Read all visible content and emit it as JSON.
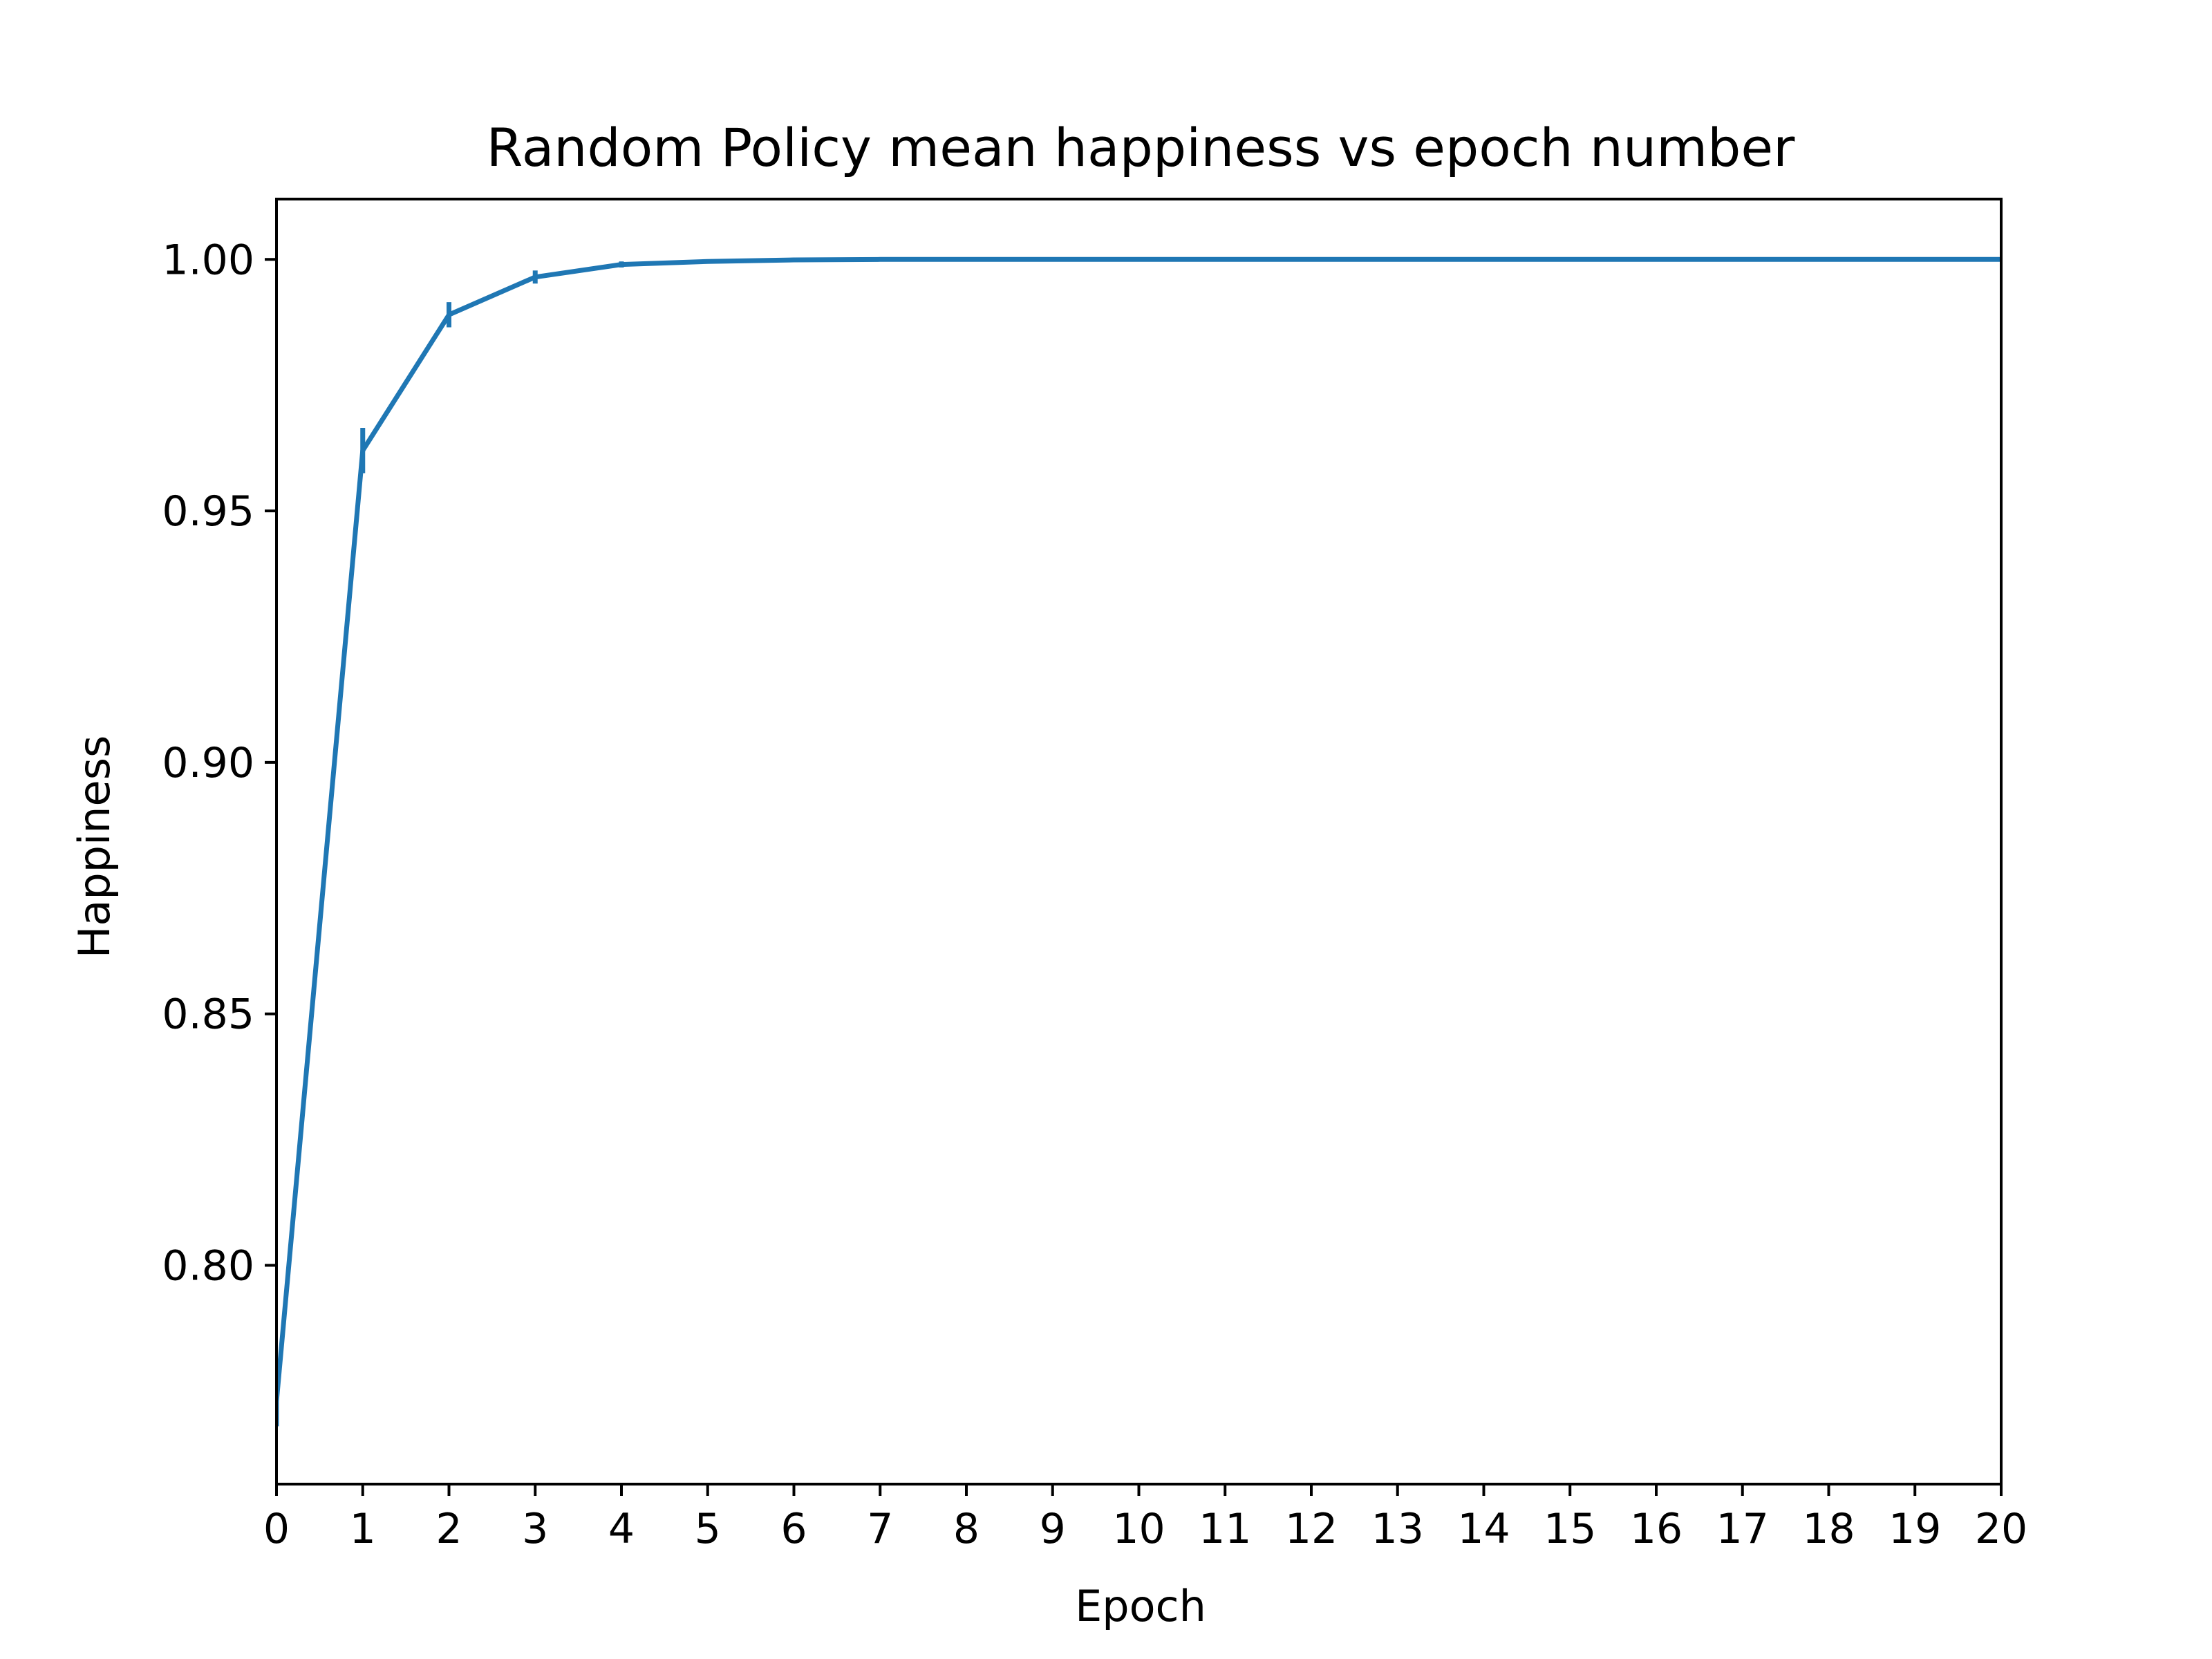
{
  "chart_data": {
    "type": "line",
    "title": "Random Policy mean happiness vs epoch number",
    "xlabel": "Epoch",
    "ylabel": "Happiness",
    "xlim": [
      0,
      20
    ],
    "ylim": [
      0.7565,
      1.012
    ],
    "x_ticks": [
      0,
      1,
      2,
      3,
      4,
      5,
      6,
      7,
      8,
      9,
      10,
      11,
      12,
      13,
      14,
      15,
      16,
      17,
      18,
      19,
      20
    ],
    "y_ticks": [
      0.8,
      0.85,
      0.9,
      0.95,
      1.0
    ],
    "y_tick_labels": [
      "0.80",
      "0.85",
      "0.90",
      "0.95",
      "1.00"
    ],
    "grid": false,
    "series": [
      {
        "color": "#1f77b4",
        "x": [
          0,
          1,
          2,
          3,
          4,
          5,
          6,
          7,
          8,
          9,
          10,
          11,
          12,
          13,
          14,
          15,
          16,
          17,
          18,
          19,
          20
        ],
        "y": [
          0.773,
          0.962,
          0.989,
          0.9965,
          0.999,
          0.9996,
          0.9999,
          1.0,
          1.0,
          1.0,
          1.0,
          1.0,
          1.0,
          1.0,
          1.0,
          1.0,
          1.0,
          1.0,
          1.0,
          1.0,
          1.0
        ],
        "error": [
          0.005,
          0.0045,
          0.0025,
          0.0013,
          0.0006,
          0.0002,
          0.0001,
          0,
          0,
          0,
          0,
          0,
          0,
          0,
          0,
          0,
          0,
          0,
          0,
          0,
          0
        ]
      }
    ]
  }
}
